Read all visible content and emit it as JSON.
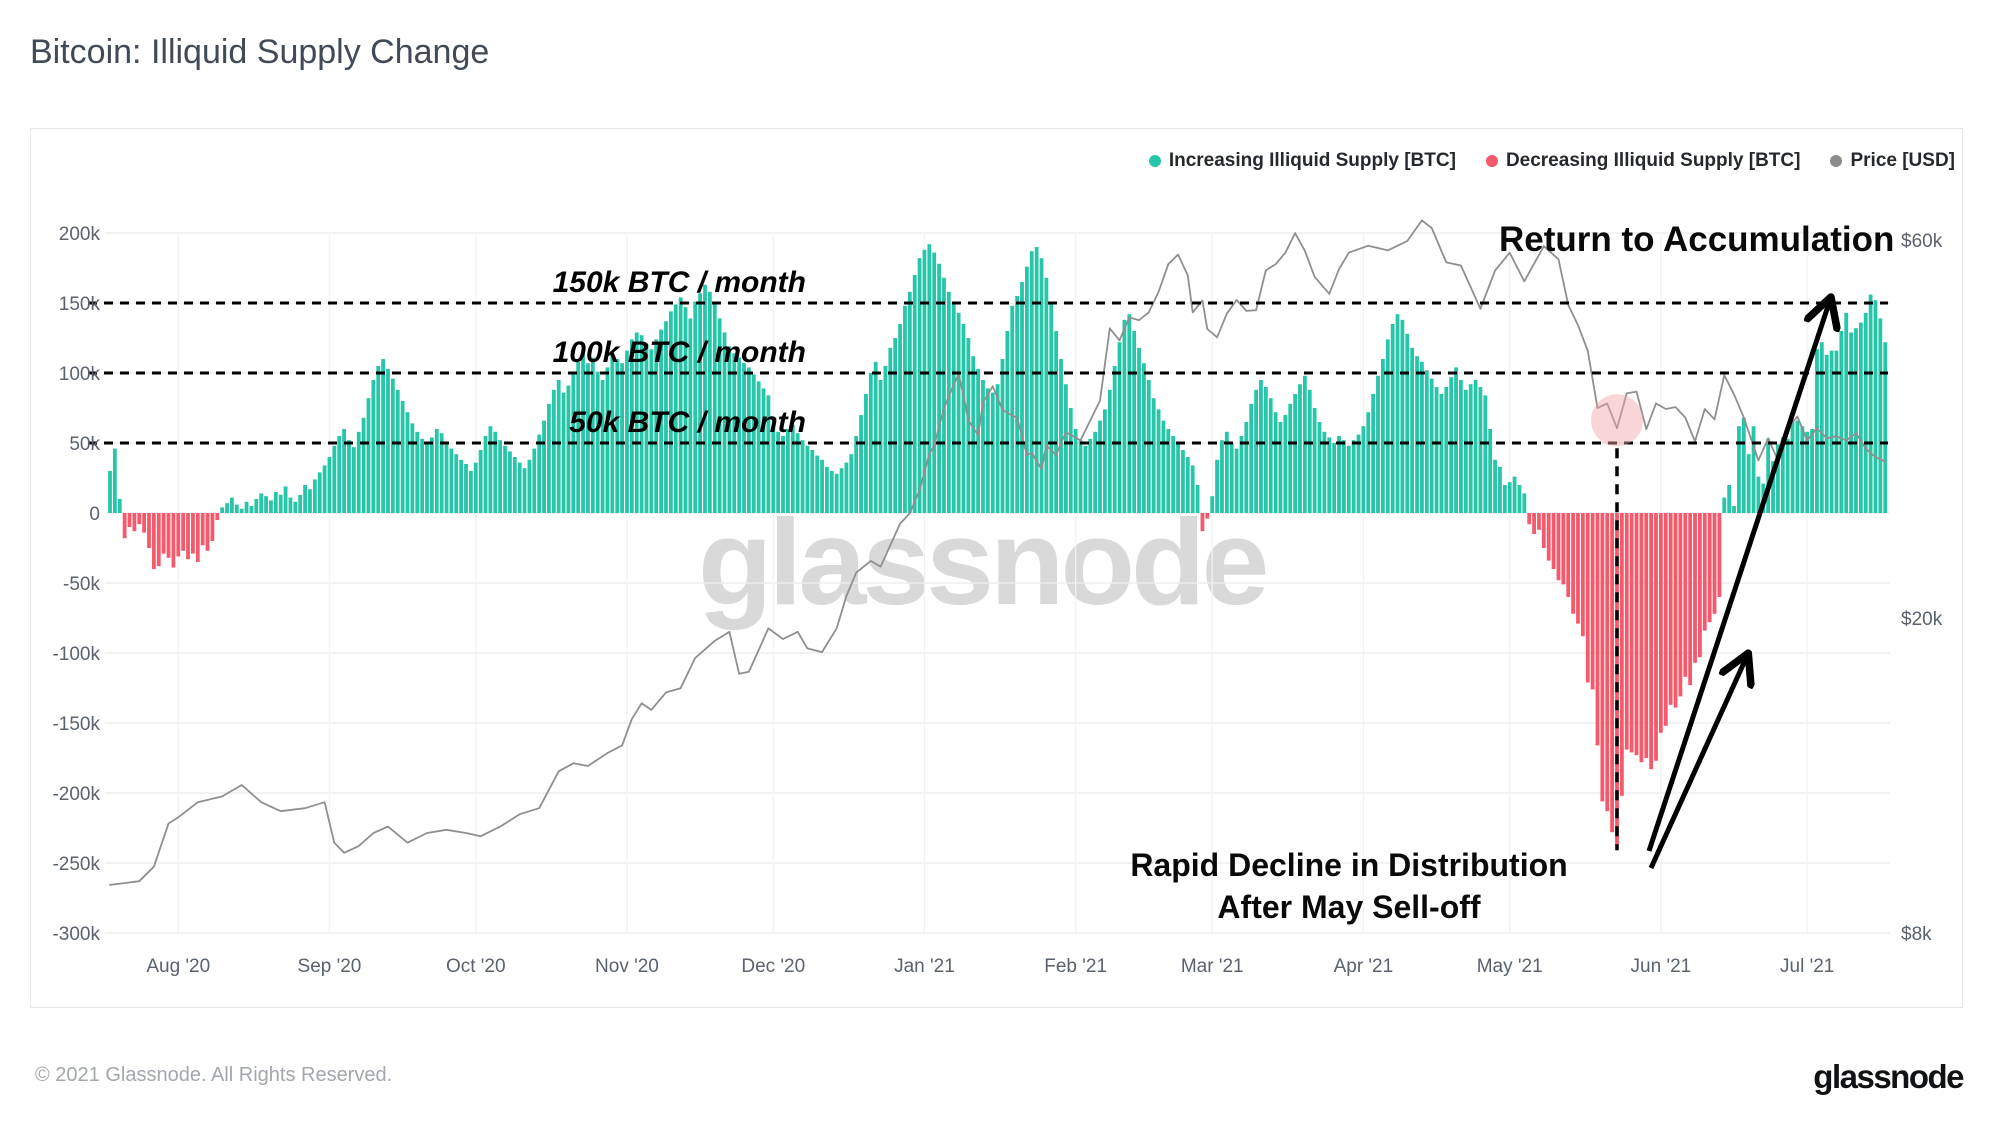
{
  "title": "Bitcoin: Illiquid Supply Change",
  "watermark": "glassnode",
  "footer": {
    "copyright": "© 2021 Glassnode. All Rights Reserved.",
    "logo": "glassnode"
  },
  "legend": [
    {
      "label": "Increasing Illiquid Supply [BTC]",
      "color": "#27c6a8"
    },
    {
      "label": "Decreasing Illiquid Supply [BTC]",
      "color": "#f4596c"
    },
    {
      "label": "Price [USD]",
      "color": "#8c8c8c"
    }
  ],
  "annotations": {
    "thresholds": [
      {
        "label": "150k BTC / month",
        "value": 150
      },
      {
        "label": "100k BTC / month",
        "value": 100
      },
      {
        "label": "50k BTC / month",
        "value": 50
      }
    ],
    "return_label": "Return to Accumulation",
    "rapid_line1": "Rapid Decline in Distribution",
    "rapid_line2": "After May Sell-off",
    "highlight_day_index": 309
  },
  "axes": {
    "left_ticks": [
      {
        "label": "200k",
        "value": 200
      },
      {
        "label": "150k",
        "value": 150
      },
      {
        "label": "100k",
        "value": 100
      },
      {
        "label": "50k",
        "value": 50
      },
      {
        "label": "0",
        "value": 0
      },
      {
        "label": "-50k",
        "value": -50
      },
      {
        "label": "-100k",
        "value": -100
      },
      {
        "label": "-150k",
        "value": -150
      },
      {
        "label": "-200k",
        "value": -200
      },
      {
        "label": "-250k",
        "value": -250
      },
      {
        "label": "-300k",
        "value": -300
      }
    ],
    "right_ticks": [
      {
        "label": "$60k",
        "value": 60
      },
      {
        "label": "$20k",
        "value": 20
      },
      {
        "label": "$8k",
        "value": 8
      }
    ],
    "x_ticks": [
      "Aug '20",
      "Sep '20",
      "Oct '20",
      "Nov '20",
      "Dec '20",
      "Jan '21",
      "Feb '21",
      "Mar '21",
      "Apr '21",
      "May '21",
      "Jun '21",
      "Jul '21"
    ],
    "month_start_indices": [
      14,
      45,
      75,
      106,
      136,
      167,
      198,
      226,
      257,
      287,
      318,
      348
    ]
  },
  "chart_data": {
    "type": "bar",
    "title": "Bitcoin: Illiquid Supply Change",
    "frequency": "daily",
    "start_date": "2020-07-18",
    "bar_series_name": "Illiquid Supply Change [BTC]",
    "bar_positive_label": "Increasing Illiquid Supply [BTC]",
    "bar_negative_label": "Decreasing Illiquid Supply [BTC]",
    "ylim_left_kbtc": [
      -300,
      200
    ],
    "right_axis_type": "log-usd",
    "right_axis_ticks_usd_k": [
      60,
      20,
      8
    ],
    "grid": true,
    "legend_position": "top-right",
    "values_kbtc": [
      30,
      46,
      10,
      -18,
      -10,
      -13,
      -8,
      -14,
      -25,
      -40,
      -38,
      -29,
      -32,
      -39,
      -31,
      -27,
      -33,
      -29,
      -35,
      -23,
      -27,
      -20,
      -5,
      4,
      7,
      11,
      6,
      3,
      8,
      5,
      10,
      14,
      12,
      9,
      15,
      13,
      19,
      11,
      8,
      13,
      20,
      17,
      24,
      29,
      34,
      40,
      48,
      55,
      60,
      52,
      47,
      58,
      68,
      82,
      95,
      105,
      110,
      103,
      96,
      88,
      80,
      72,
      64,
      58,
      53,
      49,
      54,
      60,
      57,
      50,
      46,
      42,
      38,
      35,
      30,
      36,
      45,
      55,
      62,
      58,
      52,
      48,
      44,
      40,
      36,
      32,
      38,
      46,
      56,
      66,
      78,
      88,
      95,
      86,
      91,
      100,
      108,
      114,
      107,
      111,
      101,
      95,
      104,
      113,
      110,
      107,
      116,
      124,
      129,
      127,
      121,
      117,
      124,
      131,
      137,
      144,
      149,
      154,
      147,
      139,
      151,
      157,
      163,
      158,
      149,
      139,
      129,
      119,
      114,
      111,
      107,
      104,
      99,
      94,
      89,
      84,
      62,
      58,
      55,
      60,
      63,
      57,
      52,
      48,
      45,
      41,
      38,
      33,
      30,
      28,
      32,
      36,
      42,
      55,
      70,
      85,
      100,
      108,
      95,
      105,
      118,
      125,
      135,
      148,
      158,
      170,
      182,
      188,
      192,
      186,
      178,
      168,
      158,
      150,
      143,
      135,
      125,
      112,
      103,
      95,
      89,
      86,
      92,
      110,
      130,
      148,
      155,
      165,
      176,
      187,
      190,
      182,
      168,
      150,
      130,
      110,
      92,
      75,
      60,
      52,
      48,
      53,
      58,
      66,
      74,
      88,
      105,
      122,
      138,
      142,
      130,
      118,
      107,
      95,
      82,
      74,
      66,
      60,
      55,
      50,
      45,
      40,
      34,
      20,
      -13,
      -4,
      12,
      38,
      52,
      58,
      50,
      46,
      55,
      65,
      78,
      88,
      95,
      90,
      82,
      72,
      65,
      70,
      78,
      85,
      92,
      98,
      88,
      75,
      65,
      58,
      54,
      50,
      55,
      52,
      48,
      52,
      56,
      62,
      72,
      85,
      98,
      110,
      124,
      135,
      142,
      138,
      128,
      118,
      112,
      108,
      102,
      96,
      90,
      85,
      90,
      97,
      104,
      95,
      88,
      92,
      95,
      90,
      84,
      60,
      38,
      33,
      20,
      22,
      26,
      20,
      14,
      -8,
      -15,
      -12,
      -25,
      -34,
      -40,
      -48,
      -51,
      -60,
      -72,
      -79,
      -88,
      -121,
      -126,
      -166,
      -206,
      -213,
      -228,
      -238,
      -202,
      -169,
      -171,
      -173,
      -178,
      -175,
      -183,
      -177,
      -157,
      -152,
      -137,
      -139,
      -131,
      -117,
      -123,
      -107,
      -103,
      -84,
      -78,
      -72,
      -60,
      11,
      20,
      5,
      62,
      68,
      42,
      62,
      26,
      21,
      53,
      37,
      49,
      54,
      53,
      65,
      66,
      62,
      58,
      60,
      117,
      122,
      113,
      116,
      116,
      130,
      143,
      129,
      132,
      136,
      143,
      156,
      152,
      139,
      122
    ],
    "line_series_name": "Price [USD]",
    "price_points_day_usd_k": [
      [
        0,
        9.2
      ],
      [
        6,
        9.3
      ],
      [
        9,
        9.7
      ],
      [
        12,
        11.0
      ],
      [
        14,
        11.2
      ],
      [
        18,
        11.7
      ],
      [
        23,
        11.9
      ],
      [
        27,
        12.3
      ],
      [
        31,
        11.7
      ],
      [
        35,
        11.4
      ],
      [
        40,
        11.5
      ],
      [
        44,
        11.7
      ],
      [
        46,
        10.4
      ],
      [
        48,
        10.1
      ],
      [
        51,
        10.3
      ],
      [
        54,
        10.7
      ],
      [
        57,
        10.9
      ],
      [
        61,
        10.4
      ],
      [
        65,
        10.7
      ],
      [
        69,
        10.8
      ],
      [
        73,
        10.7
      ],
      [
        76,
        10.6
      ],
      [
        80,
        10.9
      ],
      [
        84,
        11.3
      ],
      [
        88,
        11.5
      ],
      [
        92,
        12.8
      ],
      [
        95,
        13.1
      ],
      [
        98,
        13.0
      ],
      [
        102,
        13.5
      ],
      [
        105,
        13.8
      ],
      [
        107,
        14.9
      ],
      [
        109,
        15.6
      ],
      [
        111,
        15.3
      ],
      [
        114,
        16.1
      ],
      [
        117,
        16.3
      ],
      [
        120,
        17.8
      ],
      [
        124,
        18.7
      ],
      [
        127,
        19.2
      ],
      [
        129,
        17.0
      ],
      [
        131,
        17.1
      ],
      [
        133,
        18.2
      ],
      [
        135,
        19.4
      ],
      [
        138,
        18.8
      ],
      [
        141,
        19.2
      ],
      [
        143,
        18.3
      ],
      [
        146,
        18.1
      ],
      [
        149,
        19.4
      ],
      [
        151,
        21.3
      ],
      [
        153,
        22.8
      ],
      [
        156,
        23.6
      ],
      [
        158,
        23.2
      ],
      [
        160,
        24.7
      ],
      [
        162,
        26.3
      ],
      [
        164,
        27.1
      ],
      [
        166,
        29.0
      ],
      [
        168,
        32.2
      ],
      [
        169,
        33.0
      ],
      [
        171,
        36.8
      ],
      [
        173,
        39.4
      ],
      [
        174,
        40.6
      ],
      [
        175,
        38.2
      ],
      [
        176,
        35.5
      ],
      [
        178,
        34.0
      ],
      [
        179,
        37.4
      ],
      [
        181,
        39.2
      ],
      [
        183,
        36.6
      ],
      [
        185,
        36.0
      ],
      [
        186,
        35.8
      ],
      [
        188,
        32.1
      ],
      [
        189,
        32.3
      ],
      [
        191,
        30.8
      ],
      [
        192,
        33.0
      ],
      [
        194,
        32.1
      ],
      [
        196,
        34.3
      ],
      [
        199,
        33.5
      ],
      [
        201,
        35.5
      ],
      [
        203,
        37.6
      ],
      [
        205,
        46.4
      ],
      [
        207,
        44.8
      ],
      [
        209,
        47.9
      ],
      [
        211,
        47.5
      ],
      [
        213,
        48.6
      ],
      [
        215,
        51.6
      ],
      [
        217,
        55.9
      ],
      [
        219,
        57.5
      ],
      [
        221,
        54.1
      ],
      [
        222,
        48.6
      ],
      [
        224,
        50.3
      ],
      [
        225,
        46.3
      ],
      [
        227,
        45.2
      ],
      [
        229,
        48.4
      ],
      [
        231,
        50.4
      ],
      [
        233,
        48.8
      ],
      [
        235,
        48.9
      ],
      [
        237,
        54.9
      ],
      [
        239,
        55.9
      ],
      [
        241,
        57.8
      ],
      [
        243,
        61.2
      ],
      [
        245,
        58.1
      ],
      [
        247,
        53.9
      ],
      [
        250,
        51.3
      ],
      [
        252,
        55.1
      ],
      [
        254,
        57.8
      ],
      [
        258,
        59.0
      ],
      [
        262,
        58.2
      ],
      [
        266,
        59.8
      ],
      [
        269,
        63.5
      ],
      [
        271,
        62.1
      ],
      [
        274,
        56.2
      ],
      [
        277,
        55.7
      ],
      [
        281,
        49.1
      ],
      [
        284,
        54.9
      ],
      [
        287,
        57.8
      ],
      [
        290,
        53.2
      ],
      [
        294,
        58.9
      ],
      [
        297,
        56.7
      ],
      [
        299,
        49.7
      ],
      [
        301,
        46.8
      ],
      [
        303,
        43.5
      ],
      [
        305,
        36.8
      ],
      [
        307,
        37.3
      ],
      [
        309,
        34.7
      ],
      [
        311,
        38.4
      ],
      [
        313,
        38.6
      ],
      [
        315,
        34.6
      ],
      [
        317,
        37.3
      ],
      [
        319,
        36.7
      ],
      [
        321,
        36.9
      ],
      [
        323,
        35.8
      ],
      [
        325,
        33.4
      ],
      [
        327,
        36.7
      ],
      [
        329,
        35.6
      ],
      [
        331,
        40.5
      ],
      [
        333,
        38.3
      ],
      [
        335,
        35.8
      ],
      [
        338,
        31.6
      ],
      [
        340,
        33.7
      ],
      [
        342,
        31.6
      ],
      [
        344,
        34.7
      ],
      [
        346,
        35.9
      ],
      [
        348,
        33.5
      ],
      [
        350,
        34.7
      ],
      [
        352,
        33.7
      ],
      [
        354,
        33.9
      ],
      [
        356,
        33.5
      ],
      [
        358,
        34.2
      ],
      [
        360,
        32.7
      ],
      [
        362,
        31.9
      ],
      [
        364,
        31.5
      ]
    ]
  }
}
